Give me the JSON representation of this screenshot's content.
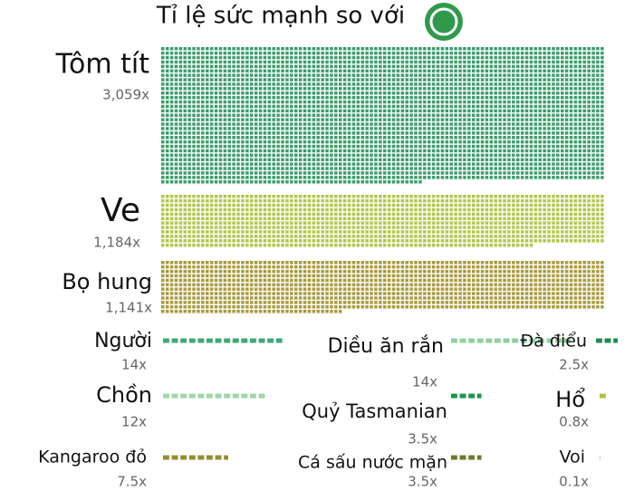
{
  "chart_data": {
    "type": "dot-grid",
    "title": "Tỉ lệ sức mạnh so với",
    "categories": [
      "Tôm tít",
      "Ve",
      "Bọ hung",
      "Người",
      "Diều ăn rắn",
      "Đà điểu",
      "Chồn",
      "Quỷ Tasmanian",
      "Hổ",
      "Kangaroo đỏ",
      "Cá sấu nước mặn",
      "Voi"
    ],
    "values": [
      3059,
      1184,
      1141,
      14,
      14,
      2.5,
      12,
      3.5,
      0.8,
      7.5,
      3.5,
      0.1
    ],
    "value_labels": [
      "3,059x",
      "1,184x",
      "1,141x",
      "14x",
      "14x",
      "2.5x",
      "12x",
      "3.5x",
      "0.8x",
      "7.5x",
      "3.5x",
      "0.1x"
    ],
    "colors": [
      "#3a9d6a",
      "#b3c64a",
      "#a99a3c",
      "#3fa877",
      "#8fd0a0",
      "#1f8a55",
      "#9fd7a8",
      "#17974f",
      "#b6bf3e",
      "#978c30",
      "#6c7a2c",
      "#c9d8b0"
    ]
  }
}
